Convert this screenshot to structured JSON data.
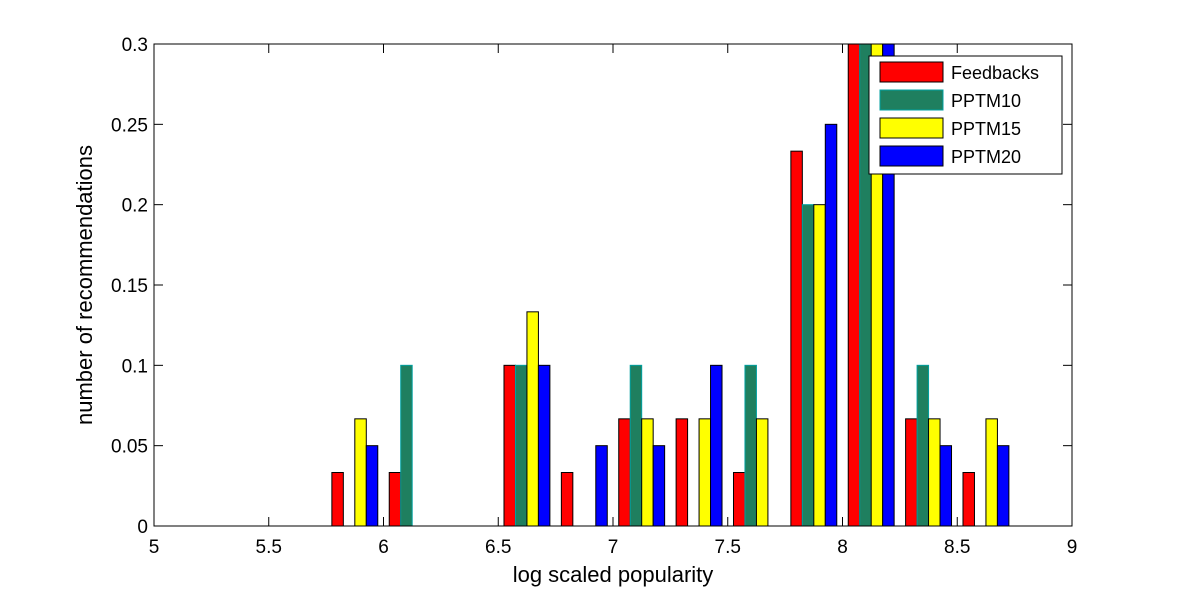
{
  "chart_data": {
    "type": "bar",
    "xlabel": "log scaled popularity",
    "ylabel": "number of recommendations",
    "xlim": [
      5,
      9
    ],
    "ylim": [
      0,
      0.3
    ],
    "xticks": [
      5,
      5.5,
      6,
      6.5,
      7,
      7.5,
      8,
      8.5,
      9
    ],
    "xtick_labels": [
      "5",
      "5.5",
      "6",
      "6.5",
      "7",
      "7.5",
      "8",
      "8.5",
      "9"
    ],
    "yticks": [
      0,
      0.05,
      0.1,
      0.15,
      0.2,
      0.25,
      0.3
    ],
    "ytick_labels": [
      "0",
      "0.05",
      "0.1",
      "0.15",
      "0.2",
      "0.25",
      "0.3"
    ],
    "grid": false,
    "legend_position": "top-right",
    "bin_centers": [
      5.125,
      5.375,
      5.625,
      5.875,
      6.125,
      6.375,
      6.625,
      6.875,
      7.125,
      7.375,
      7.625,
      7.875,
      8.125,
      8.375,
      8.625,
      8.875
    ],
    "series": [
      {
        "name": "Feedbacks",
        "color": "#ff0000",
        "values": [
          0,
          0,
          0,
          0.0333,
          0.0333,
          0,
          0.1,
          0.0333,
          0.0667,
          0.0667,
          0.0333,
          0.2333,
          0.3,
          0.0667,
          0.0333,
          0
        ]
      },
      {
        "name": "PPTM10",
        "color": "#1f7f5f",
        "edge": "#00a0a0",
        "values": [
          0,
          0,
          0,
          0,
          0.1,
          0,
          0.1,
          0,
          0.1,
          0,
          0.1,
          0.2,
          0.3,
          0.1,
          0,
          0
        ]
      },
      {
        "name": "PPTM15",
        "color": "#ffff00",
        "values": [
          0,
          0,
          0,
          0.0667,
          0,
          0,
          0.1333,
          0,
          0.0667,
          0.0667,
          0.0667,
          0.2,
          0.3,
          0.0667,
          0.0667,
          0
        ]
      },
      {
        "name": "PPTM20",
        "color": "#0000ff",
        "values": [
          0,
          0,
          0,
          0.05,
          0,
          0,
          0.1,
          0.05,
          0.05,
          0.1,
          0,
          0.25,
          0.3,
          0.05,
          0.05,
          0
        ]
      }
    ]
  }
}
